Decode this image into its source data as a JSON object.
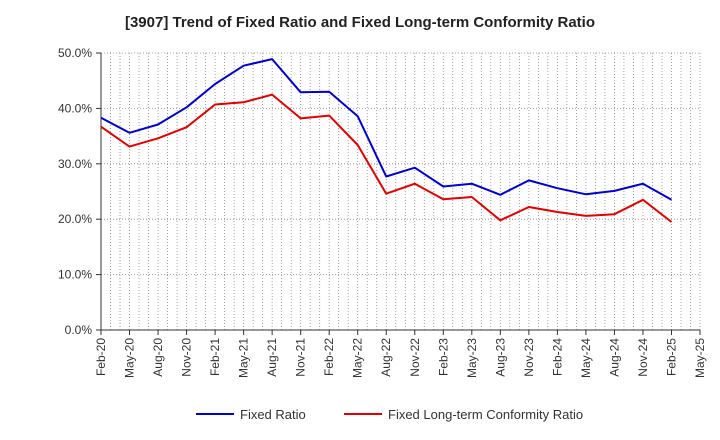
{
  "chart_data": {
    "type": "line",
    "title": "[3907]  Trend of Fixed Ratio and Fixed Long-term Conformity Ratio",
    "xlabel": "",
    "ylabel": "",
    "x": [
      "Feb-20",
      "May-20",
      "Aug-20",
      "Nov-20",
      "Feb-21",
      "May-21",
      "Aug-21",
      "Nov-21",
      "Feb-22",
      "May-22",
      "Aug-22",
      "Nov-22",
      "Feb-23",
      "May-23",
      "Aug-23",
      "Nov-23",
      "Feb-24",
      "May-24",
      "Aug-24",
      "Nov-24",
      "Feb-25",
      "May-25"
    ],
    "ylim": [
      0,
      50
    ],
    "yticks": [
      0,
      10,
      20,
      30,
      40,
      50
    ],
    "ytick_labels": [
      "0.0%",
      "10.0%",
      "20.0%",
      "30.0%",
      "40.0%",
      "50.0%"
    ],
    "grid": true,
    "legend_position": "bottom",
    "series": [
      {
        "name": "Fixed Ratio",
        "color": "#0000cc",
        "values": [
          38.3,
          35.6,
          37.1,
          40.2,
          44.4,
          47.7,
          48.9,
          42.9,
          43.0,
          38.6,
          27.7,
          29.3,
          25.9,
          26.4,
          24.4,
          27.0,
          25.6,
          24.5,
          25.1,
          26.4,
          23.5,
          null
        ]
      },
      {
        "name": "Fixed Long-term Conformity Ratio",
        "color": "#dd0000",
        "values": [
          36.7,
          33.1,
          34.6,
          36.6,
          40.7,
          41.1,
          42.5,
          38.2,
          38.7,
          33.4,
          24.6,
          26.4,
          23.6,
          24.0,
          19.8,
          22.2,
          21.3,
          20.6,
          20.9,
          23.5,
          19.5,
          null
        ]
      }
    ]
  }
}
